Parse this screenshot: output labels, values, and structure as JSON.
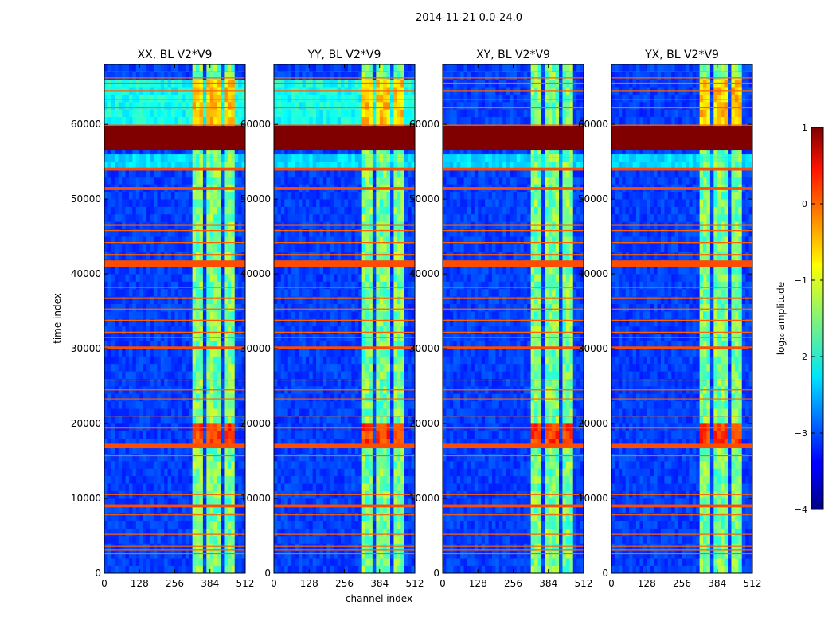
{
  "chart_data": {
    "type": "heatmap",
    "title": "2014-11-21 0.0-24.0",
    "xlabel": "channel index",
    "ylabel": "time index",
    "xlim": [
      0,
      512
    ],
    "ylim": [
      0,
      68000
    ],
    "x_ticks": [
      0,
      128,
      256,
      384,
      512
    ],
    "y_ticks": [
      0,
      10000,
      20000,
      30000,
      40000,
      50000,
      60000
    ],
    "panels": [
      {
        "title": "XX, BL V2*V9"
      },
      {
        "title": "YY, BL V2*V9"
      },
      {
        "title": "XY, BL V2*V9"
      },
      {
        "title": "YX, BL V2*V9"
      }
    ],
    "colorbar": {
      "label": "log₁₀ amplitude",
      "range": [
        -4,
        1
      ],
      "ticks": [
        -4,
        -3,
        -2,
        -1,
        0,
        1
      ],
      "tick_labels": [
        "−4",
        "−3",
        "−2",
        "−1",
        "0",
        "1"
      ],
      "colormap": "jet"
    },
    "band_channels": [
      [
        325,
        360
      ],
      [
        365,
        395
      ],
      [
        400,
        425
      ],
      [
        430,
        460
      ],
      [
        465,
        480
      ]
    ],
    "flagged_time_bands": [
      {
        "range": [
          56500,
          59800
        ],
        "value": 1
      },
      {
        "range": [
          40900,
          41800
        ],
        "value": 0
      },
      {
        "range": [
          16700,
          17300
        ],
        "value": 0
      },
      {
        "range": [
          8800,
          9200
        ],
        "value": 0
      },
      {
        "range": [
          53800,
          54200
        ],
        "value": 0
      },
      {
        "range": [
          51200,
          51600
        ],
        "value": 0
      },
      {
        "range": [
          30000,
          30300
        ],
        "value": 0
      }
    ],
    "flag_lines": [
      67000,
      66200,
      65500,
      64500,
      63300,
      62200,
      59900,
      55500,
      46500,
      45800,
      44200,
      42600,
      38200,
      36800,
      35300,
      33800,
      32200,
      31500,
      25800,
      24500,
      23300,
      21000,
      19400,
      15700,
      10500,
      7800,
      5200,
      3600,
      3100,
      2600
    ]
  }
}
